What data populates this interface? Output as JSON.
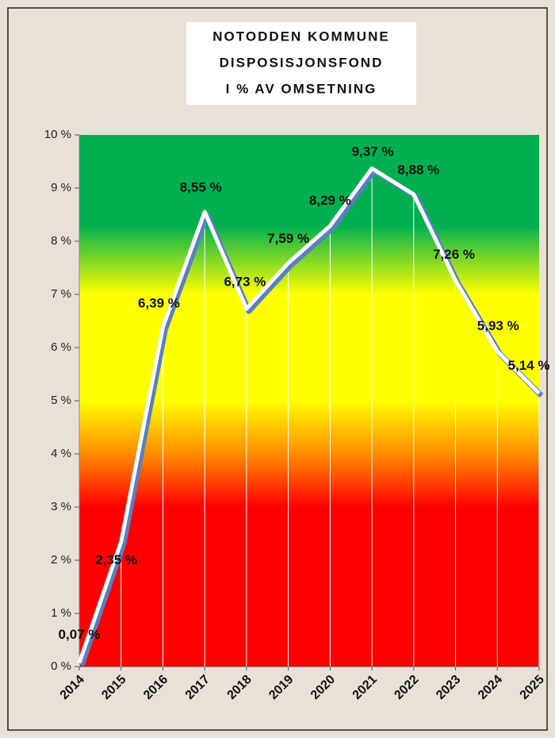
{
  "chart_data": {
    "type": "line",
    "title": [
      "NOTODDEN KOMMUNE",
      "DISPOSISJONSFOND",
      "I % AV OMSETNING"
    ],
    "categories": [
      "2014",
      "2015",
      "2016",
      "2017",
      "2018",
      "2019",
      "2020",
      "2021",
      "2022",
      "2023",
      "2024",
      "2025"
    ],
    "values": [
      0.07,
      2.35,
      6.39,
      8.55,
      6.73,
      7.59,
      8.29,
      9.37,
      8.88,
      7.26,
      5.93,
      5.14
    ],
    "value_labels": [
      "0,07 %",
      "2,35 %",
      "6,39 %",
      "8,55 %",
      "6,73 %",
      "7,59 %",
      "8,29 %",
      "9,37 %",
      "8,88 %",
      "7,26 %",
      "5,93 %",
      "5,14 %"
    ],
    "color": "#ffffff",
    "ylim": [
      0,
      10
    ],
    "yticks": [
      {
        "value": 0,
        "label": "0 %"
      },
      {
        "value": 1,
        "label": "1 %"
      },
      {
        "value": 2,
        "label": "2 %"
      },
      {
        "value": 3,
        "label": "3 %"
      },
      {
        "value": 4,
        "label": "4 %"
      },
      {
        "value": 5,
        "label": "5 %"
      },
      {
        "value": 6,
        "label": "6 %"
      },
      {
        "value": 7,
        "label": "7 %"
      },
      {
        "value": 8,
        "label": "8 %"
      },
      {
        "value": 9,
        "label": "9 %"
      },
      {
        "value": 10,
        "label": "10 %"
      }
    ]
  }
}
